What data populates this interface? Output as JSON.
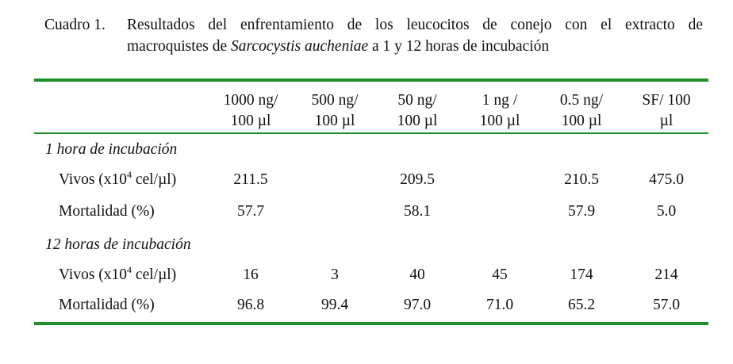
{
  "caption": {
    "label": "Cuadro 1.",
    "line1": "Resultados del enfrentamiento de los leucocitos de conejo con el extracto de",
    "line2_pre": "macroquistes de ",
    "line2_italic": "Sarcocystis aucheniae",
    "line2_post": " a 1 y 12 horas de incubación"
  },
  "table": {
    "columns": [
      {
        "l1": "1000 ng/",
        "l2": "100 µl"
      },
      {
        "l1": "500 ng/",
        "l2": "100 µl"
      },
      {
        "l1": "50 ng/",
        "l2": "100 µl"
      },
      {
        "l1": "1 ng /",
        "l2": "100 µl"
      },
      {
        "l1": "0.5 ng/",
        "l2": "100 µl"
      },
      {
        "l1": "SF/ 100",
        "l2": "µl"
      }
    ],
    "sections": [
      {
        "title": "1 hora de incubación",
        "vivos_label_pre": "Vivos (x10",
        "vivos_label_sup": "4",
        "vivos_label_post": " cel/µl)",
        "vivos": [
          "211.5",
          "",
          "209.5",
          "",
          "210.5",
          "475.0"
        ],
        "mort_label": "Mortalidad (%)",
        "mortalidad": [
          "57.7",
          "",
          "58.1",
          "",
          "57.9",
          "5.0"
        ]
      },
      {
        "title": "12 horas de incubación",
        "vivos_label_pre": "Vivos (x10",
        "vivos_label_sup": "4",
        "vivos_label_post": " cel/µl)",
        "vivos": [
          "16",
          "3",
          "40",
          "45",
          "174",
          "214"
        ],
        "mort_label": "Mortalidad (%)",
        "mortalidad": [
          "96.8",
          "99.4",
          "97.0",
          "71.0",
          "65.2",
          "57.0"
        ]
      }
    ],
    "rule_color": "#1f8f2a"
  }
}
